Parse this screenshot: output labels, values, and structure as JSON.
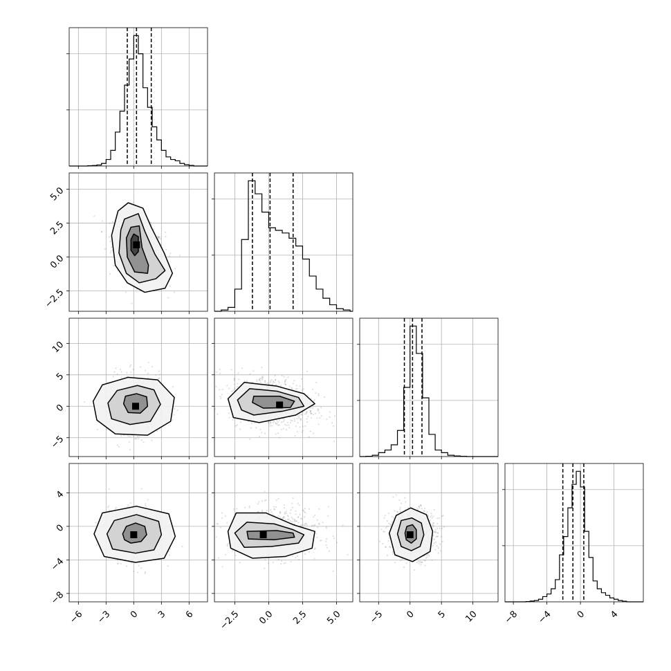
{
  "chart_data": {
    "type": "corner",
    "n_params": 4,
    "grid": true,
    "colors": {
      "line": "#000000",
      "grid": "#b0b0b0",
      "points": "#888888",
      "density": "#000000"
    },
    "axes": [
      {
        "range": [
          -7,
          8
        ],
        "ticks": [
          -6,
          -3,
          0,
          3,
          6
        ],
        "tick_labels": [
          "−6",
          "−3",
          "0",
          "3",
          "6"
        ]
      },
      {
        "range": [
          -4,
          6.2
        ],
        "ticks": [
          -2.5,
          0,
          2.5,
          5
        ],
        "tick_labels": [
          "−2.5",
          "0.0",
          "2.5",
          "5.0"
        ]
      },
      {
        "range": [
          -8,
          14
        ],
        "ticks": [
          -5,
          0,
          5,
          10
        ],
        "tick_labels": [
          "−5",
          "0",
          "5",
          "10"
        ]
      },
      {
        "range": [
          -9,
          7.5
        ],
        "ticks": [
          -8,
          -4,
          0,
          4
        ],
        "tick_labels": [
          "−8",
          "−4",
          "0",
          "4"
        ]
      }
    ],
    "histograms": [
      {
        "bins_edges": [
          -6.5,
          -6,
          -5.5,
          -5,
          -4.5,
          -4,
          -3.5,
          -3,
          -2.5,
          -2,
          -1.5,
          -1,
          -0.5,
          0,
          0.5,
          1,
          1.5,
          2,
          2.5,
          3,
          3.5,
          4,
          4.5,
          5,
          5.5,
          6,
          6.5,
          7
        ],
        "counts": [
          0,
          0,
          0,
          0.002,
          0.004,
          0.008,
          0.02,
          0.05,
          0.12,
          0.26,
          0.42,
          0.62,
          0.82,
          1.0,
          0.86,
          0.6,
          0.45,
          0.3,
          0.2,
          0.12,
          0.07,
          0.05,
          0.04,
          0.02,
          0.01,
          0.005,
          0
        ],
        "quantiles": [
          -0.7,
          0.3,
          1.9
        ]
      },
      {
        "bins_edges": [
          -3.5,
          -3,
          -2.5,
          -2,
          -1.5,
          -1,
          -0.5,
          0,
          0.5,
          1,
          1.5,
          2,
          2.5,
          3,
          3.5,
          4,
          4.5,
          5,
          5.5,
          6
        ],
        "counts": [
          0.01,
          0.03,
          0.17,
          0.55,
          1.0,
          0.9,
          0.76,
          0.64,
          0.62,
          0.6,
          0.56,
          0.5,
          0.4,
          0.27,
          0.17,
          0.1,
          0.05,
          0.02,
          0.01
        ],
        "quantiles": [
          -1.2,
          0.1,
          1.8
        ]
      },
      {
        "bins_edges": [
          -7,
          -6,
          -5,
          -4,
          -3,
          -2,
          -1,
          0,
          1,
          2,
          3,
          4,
          5,
          6,
          7,
          8,
          9
        ],
        "counts": [
          0.002,
          0.01,
          0.03,
          0.05,
          0.09,
          0.2,
          0.53,
          1.0,
          0.79,
          0.45,
          0.17,
          0.05,
          0.03,
          0.01,
          0.005,
          0.002
        ],
        "quantiles": [
          -0.9,
          0.4,
          1.9
        ]
      },
      {
        "bins_edges": [
          -8,
          -7.5,
          -7,
          -6.5,
          -6,
          -5.5,
          -5,
          -4.5,
          -4,
          -3.5,
          -3,
          -2.5,
          -2,
          -1.5,
          -1,
          -0.5,
          0,
          0.5,
          1,
          1.5,
          2,
          2.5,
          3,
          3.5,
          4,
          4.5,
          5,
          5.5,
          6
        ],
        "counts": [
          0,
          0,
          0,
          0.002,
          0.006,
          0.01,
          0.02,
          0.04,
          0.06,
          0.1,
          0.17,
          0.36,
          0.5,
          0.72,
          0.9,
          1.0,
          0.88,
          0.54,
          0.34,
          0.16,
          0.1,
          0.07,
          0.05,
          0.03,
          0.02,
          0.01,
          0.005,
          0
        ],
        "quantiles": [
          -2.1,
          -0.9,
          0.4
        ]
      }
    ],
    "pairs": [
      {
        "row": 1,
        "col": 0,
        "mean": [
          0.6,
          0.5
        ],
        "sd": [
          1.4,
          1.1
        ],
        "rho": -0.35,
        "peak": [
          0.3,
          0.9
        ],
        "contour_levels": [
          [
            [
              -1.7,
              3.4
            ],
            [
              -0.6,
              4.0
            ],
            [
              1.0,
              3.6
            ],
            [
              1.9,
              2.2
            ],
            [
              3.3,
              0.3
            ],
            [
              4.2,
              -1.2
            ],
            [
              3.4,
              -2.3
            ],
            [
              1.2,
              -2.6
            ],
            [
              -0.7,
              -1.9
            ],
            [
              -2.0,
              -0.6
            ],
            [
              -2.4,
              1.6
            ]
          ],
          [
            [
              -1.0,
              2.8
            ],
            [
              0.5,
              3.2
            ],
            [
              1.2,
              1.9
            ],
            [
              2.3,
              0.2
            ],
            [
              3.4,
              -1.0
            ],
            [
              2.4,
              -1.6
            ],
            [
              0.6,
              -1.9
            ],
            [
              -0.8,
              -1.2
            ],
            [
              -1.6,
              0.3
            ],
            [
              -1.4,
              2.0
            ]
          ],
          [
            [
              -0.3,
              2.2
            ],
            [
              0.6,
              2.3
            ],
            [
              0.9,
              0.7
            ],
            [
              1.6,
              -0.6
            ],
            [
              1.5,
              -1.2
            ],
            [
              0.1,
              -1.1
            ],
            [
              -0.7,
              0.0
            ],
            [
              -0.8,
              1.4
            ]
          ],
          [
            [
              0.0,
              1.7
            ],
            [
              0.5,
              1.5
            ],
            [
              0.5,
              0.4
            ],
            [
              0.1,
              0.1
            ],
            [
              -0.3,
              0.5
            ],
            [
              -0.3,
              1.3
            ]
          ]
        ]
      },
      {
        "row": 2,
        "col": 0,
        "mean": [
          0.3,
          0.3
        ],
        "sd": [
          1.5,
          2.3
        ],
        "rho": 0.0,
        "peak": [
          0.2,
          0.0
        ],
        "contour_levels": [
          [
            [
              -4.4,
              0.8
            ],
            [
              -3.4,
              3.4
            ],
            [
              -0.6,
              4.6
            ],
            [
              2.6,
              4.2
            ],
            [
              4.4,
              1.4
            ],
            [
              4.0,
              -2.4
            ],
            [
              1.5,
              -4.6
            ],
            [
              -2.0,
              -4.4
            ],
            [
              -4.0,
              -2.2
            ]
          ],
          [
            [
              -2.8,
              0.5
            ],
            [
              -1.8,
              2.5
            ],
            [
              0.4,
              3.3
            ],
            [
              2.2,
              2.6
            ],
            [
              2.9,
              0.3
            ],
            [
              1.8,
              -2.4
            ],
            [
              -0.4,
              -2.9
            ],
            [
              -2.4,
              -2.0
            ]
          ],
          [
            [
              -1.1,
              0.4
            ],
            [
              -0.9,
              1.6
            ],
            [
              0.3,
              2.0
            ],
            [
              1.4,
              1.5
            ],
            [
              1.5,
              0.0
            ],
            [
              0.7,
              -1.1
            ],
            [
              -0.6,
              -1.0
            ]
          ]
        ]
      },
      {
        "row": 2,
        "col": 1,
        "mean": [
          0.3,
          0.6
        ],
        "sd": [
          1.6,
          2.2
        ],
        "rho": -0.25,
        "peak": [
          0.8,
          0.2
        ],
        "contour_levels": [
          [
            [
              -3.0,
              1.2
            ],
            [
              -1.8,
              3.8
            ],
            [
              0.6,
              3.2
            ],
            [
              2.6,
              2.0
            ],
            [
              3.4,
              0.4
            ],
            [
              2.0,
              -1.4
            ],
            [
              -0.7,
              -2.6
            ],
            [
              -2.6,
              -1.8
            ]
          ],
          [
            [
              -2.3,
              1.0
            ],
            [
              -1.4,
              2.8
            ],
            [
              0.6,
              2.4
            ],
            [
              2.2,
              1.4
            ],
            [
              2.6,
              0.0
            ],
            [
              1.0,
              -0.8
            ],
            [
              -1.1,
              -1.4
            ],
            [
              -2.0,
              -0.6
            ]
          ],
          [
            [
              -1.1,
              1.6
            ],
            [
              0.8,
              1.6
            ],
            [
              1.9,
              0.8
            ],
            [
              1.6,
              -0.2
            ],
            [
              -0.4,
              -0.3
            ],
            [
              -1.2,
              0.6
            ]
          ]
        ]
      },
      {
        "row": 3,
        "col": 0,
        "mean": [
          0.3,
          -0.9
        ],
        "sd": [
          1.5,
          1.5
        ],
        "rho": 0.0,
        "peak": [
          0.0,
          -1.0
        ],
        "contour_levels": [
          [
            [
              -4.3,
              -0.9
            ],
            [
              -3.4,
              1.6
            ],
            [
              0.3,
              2.4
            ],
            [
              3.8,
              1.5
            ],
            [
              4.5,
              -1.2
            ],
            [
              3.3,
              -3.8
            ],
            [
              0.2,
              -4.3
            ],
            [
              -3.2,
              -3.6
            ]
          ],
          [
            [
              -2.9,
              -0.9
            ],
            [
              -2.1,
              0.7
            ],
            [
              0.3,
              1.4
            ],
            [
              2.7,
              0.6
            ],
            [
              3.0,
              -1.0
            ],
            [
              2.2,
              -2.8
            ],
            [
              0.2,
              -3.2
            ],
            [
              -2.3,
              -2.7
            ]
          ],
          [
            [
              -1.2,
              -0.9
            ],
            [
              -0.8,
              0.0
            ],
            [
              0.2,
              0.4
            ],
            [
              1.2,
              0.0
            ],
            [
              1.4,
              -1.0
            ],
            [
              0.8,
              -1.8
            ],
            [
              -0.3,
              -2.0
            ],
            [
              -1.0,
              -1.6
            ]
          ]
        ]
      },
      {
        "row": 3,
        "col": 1,
        "mean": [
          0.4,
          -0.8
        ],
        "sd": [
          1.7,
          1.5
        ],
        "rho": 0.0,
        "peak": [
          -0.4,
          -1.0
        ],
        "contour_levels": [
          [
            [
              -3.0,
              -0.6
            ],
            [
              -2.4,
              1.6
            ],
            [
              -0.2,
              1.6
            ],
            [
              1.8,
              0.2
            ],
            [
              3.4,
              -0.6
            ],
            [
              3.2,
              -2.6
            ],
            [
              1.2,
              -3.6
            ],
            [
              -1.2,
              -3.8
            ],
            [
              -2.8,
              -2.6
            ]
          ],
          [
            [
              -2.5,
              -0.8
            ],
            [
              -1.6,
              0.5
            ],
            [
              0.4,
              0.3
            ],
            [
              1.8,
              -0.4
            ],
            [
              2.6,
              -1.0
            ],
            [
              2.2,
              -2.0
            ],
            [
              0.2,
              -2.4
            ],
            [
              -1.8,
              -2.5
            ]
          ],
          [
            [
              -1.6,
              -0.6
            ],
            [
              0.6,
              -0.5
            ],
            [
              1.8,
              -0.8
            ],
            [
              1.9,
              -1.3
            ],
            [
              0.4,
              -1.6
            ],
            [
              -1.5,
              -1.5
            ]
          ]
        ]
      },
      {
        "row": 3,
        "col": 2,
        "mean": [
          0.3,
          -0.8
        ],
        "sd": [
          2.0,
          1.5
        ],
        "rho": 0.0,
        "peak": [
          0.0,
          -1.0
        ],
        "contour_levels": [
          [
            [
              -3.3,
              -0.8
            ],
            [
              -2.2,
              1.3
            ],
            [
              0.1,
              2.2
            ],
            [
              2.6,
              1.4
            ],
            [
              3.6,
              -0.6
            ],
            [
              3.2,
              -3.0
            ],
            [
              0.4,
              -4.2
            ],
            [
              -2.4,
              -3.4
            ]
          ],
          [
            [
              -2.0,
              -0.9
            ],
            [
              -1.4,
              0.7
            ],
            [
              0.3,
              1.0
            ],
            [
              1.8,
              0.4
            ],
            [
              2.2,
              -1.0
            ],
            [
              1.6,
              -2.4
            ],
            [
              0.2,
              -2.9
            ],
            [
              -1.4,
              -2.4
            ]
          ],
          [
            [
              -0.8,
              -0.8
            ],
            [
              -0.5,
              0.0
            ],
            [
              0.4,
              0.2
            ],
            [
              1.0,
              -0.4
            ],
            [
              1.0,
              -1.5
            ],
            [
              0.2,
              -2.0
            ],
            [
              -0.6,
              -1.6
            ]
          ]
        ]
      }
    ]
  }
}
